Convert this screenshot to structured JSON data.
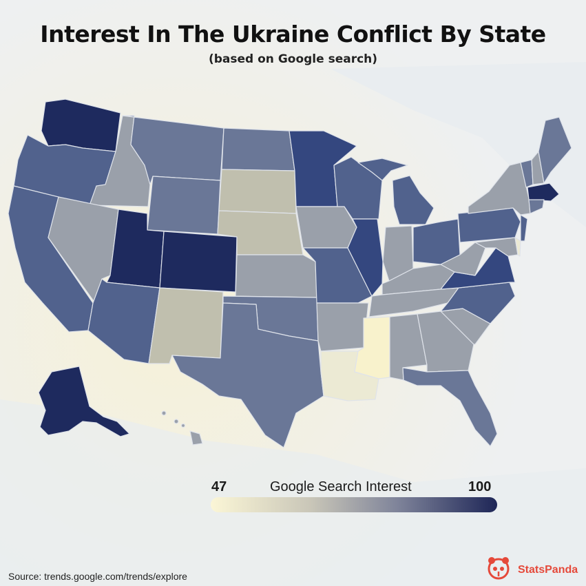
{
  "title": "Interest In The Ukraine Conflict By State",
  "subtitle": "(based on Google search)",
  "legend": {
    "min": "47",
    "label": "Google Search Interest",
    "max": "100",
    "colors": [
      "#fbf6d6",
      "#c9c6b8",
      "#7f849a",
      "#1e2657"
    ]
  },
  "source": "Source: trends.google.com/trends/explore",
  "brand": {
    "name": "StatsPanda",
    "color": "#e5493a",
    "icon": "panda-icon"
  },
  "colors": {
    "darkest": "#1e2a5e",
    "dark": "#34477f",
    "mid_dark": "#51628d",
    "mid": "#6a7797",
    "light": "#9aa0aa",
    "lighter": "#c0bfae",
    "lightest": "#ecead4",
    "palest": "#f8f2cc"
  }
}
